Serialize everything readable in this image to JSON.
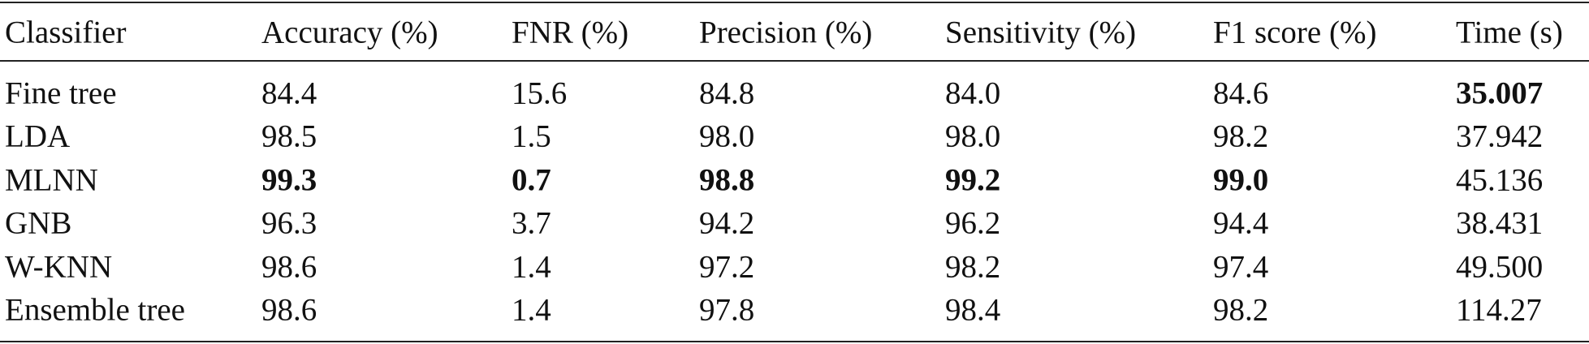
{
  "table": {
    "header": [
      "Classifier",
      "Accuracy (%)",
      "FNR (%)",
      "Precision (%)",
      "Sensitivity (%)",
      "F1 score (%)",
      "Time (s)"
    ],
    "rows": [
      [
        "Fine tree",
        "84.4",
        "15.6",
        "84.8",
        "84.0",
        "84.6",
        "35.007"
      ],
      [
        "LDA",
        "98.5",
        "1.5",
        "98.0",
        "98.0",
        "98.2",
        "37.942"
      ],
      [
        "MLNN",
        "99.3",
        "0.7",
        "98.8",
        "99.2",
        "99.0",
        "45.136"
      ],
      [
        "GNB",
        "96.3",
        "3.7",
        "94.2",
        "96.2",
        "94.4",
        "38.431"
      ],
      [
        "W-KNN",
        "98.6",
        "1.4",
        "97.2",
        "98.2",
        "97.4",
        "49.500"
      ],
      [
        "Ensemble tree",
        "98.6",
        "1.4",
        "97.8",
        "98.4",
        "98.2",
        "114.27"
      ]
    ],
    "bold": [
      [
        0,
        6
      ],
      [
        2,
        1
      ],
      [
        2,
        2
      ],
      [
        2,
        3
      ],
      [
        2,
        4
      ],
      [
        2,
        5
      ]
    ]
  }
}
